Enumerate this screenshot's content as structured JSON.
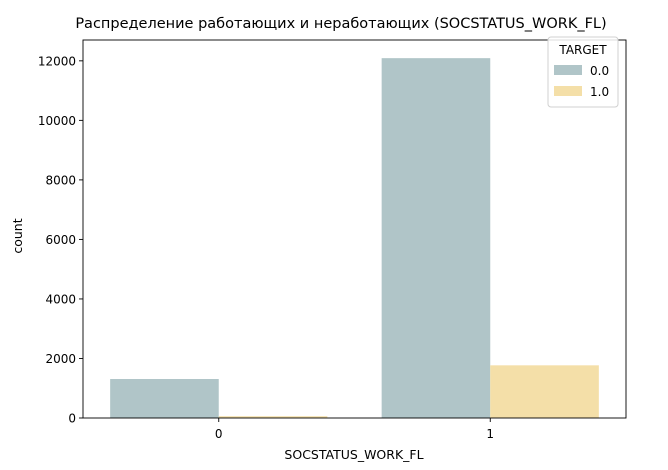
{
  "chart_data": {
    "type": "bar",
    "title": "Распределение работающих и неработающих (SOCSTATUS_WORK_FL)",
    "xlabel": "SOCSTATUS_WORK_FL",
    "ylabel": "count",
    "categories": [
      "0",
      "1"
    ],
    "ylim": [
      0,
      12700
    ],
    "yticks": [
      0,
      2000,
      4000,
      6000,
      8000,
      10000,
      12000
    ],
    "grid": false,
    "legend": {
      "title": "TARGET",
      "placement": "top-right"
    },
    "series": [
      {
        "name": "0.0",
        "color": "#b0c5c8",
        "values": [
          1310,
          12090
        ]
      },
      {
        "name": "1.0",
        "color": "#f4dfa8",
        "values": [
          60,
          1770
        ]
      }
    ]
  }
}
